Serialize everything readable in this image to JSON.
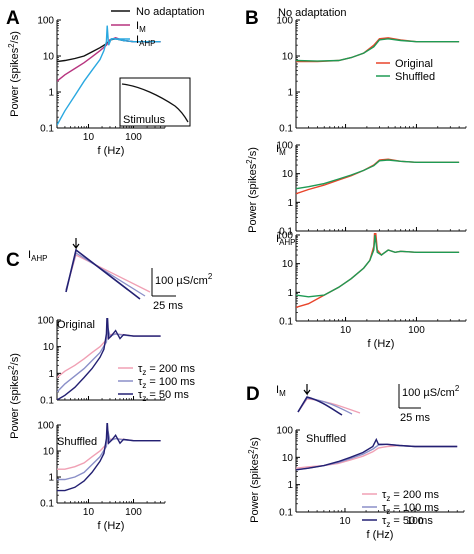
{
  "colors": {
    "black": "#111111",
    "pink": "#b7347f",
    "cyan": "#2aa8e0",
    "red": "#e8442a",
    "green": "#1f9a54",
    "tau200": "#f0a0b4",
    "tau100": "#8a8fc8",
    "tau50": "#232072"
  },
  "panels": {
    "A": "A",
    "B": "B",
    "C": "C",
    "D": "D"
  },
  "axes": {
    "power_label": "Power (spikes",
    "power_sup": "2",
    "power_end": "/s)",
    "f_label": "f (Hz)"
  },
  "legendA": {
    "items": [
      {
        "text": "No adaptation",
        "color": "#111111"
      },
      {
        "text": "I",
        "sub": "M",
        "color": "#b7347f"
      },
      {
        "text": "I",
        "sub": "AHP",
        "color": "#2aa8e0"
      }
    ],
    "inset": "Stimulus"
  },
  "legendB": {
    "items": [
      {
        "text": "Original",
        "color": "#e8442a"
      },
      {
        "text": "Shuffled",
        "color": "#1f9a54"
      }
    ]
  },
  "B_titles": {
    "b1": "No adaptation",
    "b2": "I",
    "b2sub": "M",
    "b3": "I",
    "b3sub": "AHP"
  },
  "C_labels": {
    "title": "I",
    "titlesub": "AHP",
    "scale_cond": "100 µS/cm",
    "scale_cond_sup": "2",
    "scale_time": "25 ms",
    "top": "Original",
    "bottom": "Shuffled"
  },
  "D_labels": {
    "title": "I",
    "titlesub": "M",
    "scale_cond": "100 µS/cm",
    "scale_cond_sup": "2",
    "scale_time": "25 ms",
    "bottom": "Shuffled"
  },
  "tau_legend": [
    {
      "text": "τ",
      "sub": "z",
      "val": " = 200 ms",
      "color": "#f0a0b4"
    },
    {
      "text": "τ",
      "sub": "z",
      "val": " = 100 ms",
      "color": "#8a8fc8"
    },
    {
      "text": "τ",
      "sub": "z",
      "val": " = 50 ms",
      "color": "#232072"
    }
  ],
  "chart_data": [
    {
      "panel": "A",
      "type": "line",
      "xscale": "log",
      "yscale": "log",
      "xlim": [
        2,
        500
      ],
      "ylim": [
        0.1,
        100
      ],
      "xticks": [
        "10",
        "100"
      ],
      "yticks": [
        "0.1",
        "1",
        "10",
        "100"
      ],
      "xlabel": "f (Hz)",
      "ylabel": "Power (spikes^2/s)",
      "series": [
        {
          "name": "No adaptation",
          "color": "#111111",
          "x": [
            2,
            3,
            5,
            8,
            12,
            18,
            25,
            30,
            40,
            60,
            100,
            200,
            400
          ],
          "y": [
            7,
            7.5,
            8.5,
            10,
            13,
            17,
            22,
            28,
            30,
            27,
            25,
            25,
            25
          ]
        },
        {
          "name": "I_M",
          "color": "#b7347f",
          "x": [
            2,
            3,
            5,
            8,
            12,
            18,
            25,
            30,
            40,
            60,
            100,
            200,
            400
          ],
          "y": [
            2,
            3,
            4.5,
            6.5,
            9.5,
            14,
            20,
            28,
            32,
            27,
            25,
            25,
            25
          ]
        },
        {
          "name": "I_AHP",
          "color": "#2aa8e0",
          "x": [
            2,
            3,
            5,
            8,
            12,
            18,
            22,
            25,
            26,
            28,
            32,
            40,
            60,
            100,
            200,
            400
          ],
          "y": [
            0.12,
            0.3,
            0.8,
            2,
            4,
            8,
            14,
            25,
            70,
            20,
            30,
            30,
            27,
            25,
            25,
            25
          ]
        }
      ]
    },
    {
      "panel": "B-no-adaptation",
      "type": "line",
      "xscale": "log",
      "yscale": "log",
      "xlim": [
        2,
        500
      ],
      "ylim": [
        0.1,
        100
      ],
      "xticks": [],
      "yticks": [
        "0.1",
        "1",
        "10",
        "100"
      ],
      "series": [
        {
          "name": "Original",
          "color": "#e8442a",
          "x": [
            2,
            4,
            8,
            12,
            18,
            25,
            30,
            40,
            60,
            100,
            200,
            400
          ],
          "y": [
            7,
            7,
            7.5,
            9,
            12,
            20,
            30,
            32,
            28,
            25,
            25,
            25
          ]
        },
        {
          "name": "Shuffled",
          "color": "#1f9a54",
          "x": [
            2,
            4,
            8,
            12,
            18,
            25,
            30,
            40,
            60,
            100,
            200,
            400
          ],
          "y": [
            7.5,
            7.2,
            7.5,
            9,
            12,
            18,
            28,
            30,
            27,
            25,
            25,
            25
          ]
        }
      ]
    },
    {
      "panel": "B-IM",
      "type": "line",
      "xscale": "log",
      "yscale": "log",
      "xlim": [
        2,
        500
      ],
      "ylim": [
        0.1,
        100
      ],
      "xticks": [],
      "yticks": [
        "0.1",
        "1",
        "10",
        "100"
      ],
      "series": [
        {
          "name": "Original",
          "color": "#e8442a",
          "x": [
            2,
            3,
            5,
            8,
            12,
            18,
            25,
            30,
            40,
            60,
            100,
            200,
            400
          ],
          "y": [
            2,
            2.8,
            4,
            6,
            8.5,
            13,
            20,
            30,
            32,
            27,
            25,
            25,
            25
          ]
        },
        {
          "name": "Shuffled",
          "color": "#1f9a54",
          "x": [
            2,
            3,
            5,
            8,
            12,
            18,
            25,
            30,
            40,
            60,
            100,
            200,
            400
          ],
          "y": [
            3,
            3.5,
            4.5,
            6.5,
            9,
            13,
            19,
            28,
            30,
            27,
            25,
            25,
            25
          ]
        }
      ]
    },
    {
      "panel": "B-IAHP",
      "type": "line",
      "xscale": "log",
      "yscale": "log",
      "xlim": [
        2,
        500
      ],
      "ylim": [
        0.1,
        100
      ],
      "xticks": [
        "10",
        "100"
      ],
      "yticks": [
        "0.1",
        "1",
        "10",
        "100"
      ],
      "xlabel": "f (Hz)",
      "series": [
        {
          "name": "Original",
          "color": "#e8442a",
          "x": [
            2,
            3,
            5,
            8,
            12,
            18,
            22,
            25,
            26,
            28,
            32,
            40,
            50,
            60,
            100,
            200,
            400
          ],
          "y": [
            0.3,
            0.4,
            0.8,
            1.5,
            3,
            7,
            13,
            40,
            230,
            30,
            20,
            30,
            25,
            27,
            25,
            25,
            25
          ]
        },
        {
          "name": "Shuffled",
          "color": "#1f9a54",
          "x": [
            2,
            3,
            5,
            8,
            12,
            18,
            22,
            25,
            26,
            28,
            32,
            40,
            50,
            60,
            100,
            200,
            400
          ],
          "y": [
            0.8,
            0.7,
            0.8,
            1.5,
            3,
            7,
            13,
            30,
            100,
            25,
            20,
            30,
            25,
            27,
            25,
            25,
            25
          ]
        }
      ]
    },
    {
      "panel": "C-original",
      "type": "line",
      "xscale": "log",
      "yscale": "log",
      "xlim": [
        2,
        500
      ],
      "ylim": [
        0.1,
        100
      ],
      "xticks": [],
      "yticks": [
        "0.1",
        "1",
        "10",
        "100"
      ],
      "series": [
        {
          "name": "τz = 200 ms",
          "color": "#f0a0b4",
          "x": [
            2,
            3,
            5,
            8,
            12,
            18,
            25,
            30,
            40,
            60,
            100,
            200,
            400
          ],
          "y": [
            0.7,
            1.2,
            2,
            3.5,
            6,
            10,
            18,
            28,
            30,
            28,
            25,
            25,
            25
          ]
        },
        {
          "name": "τz = 100 ms",
          "color": "#8a8fc8",
          "x": [
            2,
            3,
            5,
            8,
            12,
            18,
            25,
            27,
            30,
            40,
            60,
            100,
            200,
            400
          ],
          "y": [
            0.2,
            0.4,
            0.8,
            1.5,
            3,
            6,
            15,
            50,
            25,
            30,
            27,
            25,
            25,
            25
          ]
        },
        {
          "name": "τz = 50 ms",
          "color": "#232072",
          "x": [
            2,
            3,
            5,
            8,
            12,
            18,
            22,
            25,
            26,
            28,
            32,
            40,
            50,
            60,
            100,
            200,
            400
          ],
          "y": [
            0.1,
            0.15,
            0.3,
            0.7,
            1.5,
            4,
            8,
            30,
            220,
            20,
            25,
            40,
            20,
            28,
            25,
            25,
            25
          ]
        }
      ]
    },
    {
      "panel": "C-shuffled",
      "type": "line",
      "xscale": "log",
      "yscale": "log",
      "xlim": [
        2,
        500
      ],
      "ylim": [
        0.1,
        100
      ],
      "xticks": [
        "10",
        "100"
      ],
      "yticks": [
        "0.1",
        "1",
        "10",
        "100"
      ],
      "xlabel": "f (Hz)",
      "series": [
        {
          "name": "τz = 200 ms",
          "color": "#f0a0b4",
          "x": [
            2,
            3,
            5,
            8,
            12,
            18,
            25,
            30,
            40,
            60,
            100,
            200,
            400
          ],
          "y": [
            2,
            2,
            2.5,
            3.5,
            6,
            10,
            18,
            28,
            30,
            28,
            25,
            25,
            25
          ]
        },
        {
          "name": "τz = 100 ms",
          "color": "#8a8fc8",
          "x": [
            2,
            3,
            5,
            8,
            12,
            18,
            25,
            27,
            30,
            40,
            60,
            100,
            200,
            400
          ],
          "y": [
            0.8,
            0.8,
            1,
            1.5,
            3,
            6,
            15,
            60,
            25,
            30,
            27,
            25,
            25,
            25
          ]
        },
        {
          "name": "τz = 50 ms",
          "color": "#232072",
          "x": [
            2,
            3,
            5,
            8,
            12,
            18,
            22,
            25,
            26,
            28,
            32,
            40,
            50,
            60,
            100,
            200,
            400
          ],
          "y": [
            0.3,
            0.3,
            0.4,
            0.7,
            1.5,
            4,
            8,
            30,
            150,
            20,
            25,
            40,
            20,
            28,
            25,
            25,
            25
          ]
        }
      ]
    },
    {
      "panel": "D-shuffled",
      "type": "line",
      "xscale": "log",
      "yscale": "log",
      "xlim": [
        2,
        500
      ],
      "ylim": [
        0.1,
        100
      ],
      "xticks": [
        "10",
        "100"
      ],
      "yticks": [
        "0.1",
        "1",
        "10",
        "100"
      ],
      "xlabel": "f (Hz)",
      "series": [
        {
          "name": "τz = 200 ms",
          "color": "#f0a0b4",
          "x": [
            2,
            3,
            5,
            8,
            12,
            18,
            25,
            30,
            40,
            60,
            100,
            200,
            400
          ],
          "y": [
            4,
            4.5,
            5,
            6,
            8,
            11,
            16,
            22,
            25,
            27,
            25,
            25,
            25
          ]
        },
        {
          "name": "τz = 100 ms",
          "color": "#8a8fc8",
          "x": [
            2,
            3,
            5,
            8,
            12,
            18,
            25,
            30,
            40,
            60,
            100,
            200,
            400
          ],
          "y": [
            3.5,
            4,
            5,
            6.5,
            9,
            13,
            20,
            28,
            30,
            27,
            25,
            25,
            25
          ]
        },
        {
          "name": "τz = 50 ms",
          "color": "#232072",
          "x": [
            2,
            3,
            5,
            8,
            12,
            18,
            25,
            28,
            30,
            40,
            60,
            100,
            200,
            400
          ],
          "y": [
            3.5,
            4,
            5,
            7,
            10,
            15,
            25,
            45,
            30,
            30,
            27,
            25,
            25,
            25
          ]
        }
      ]
    }
  ]
}
